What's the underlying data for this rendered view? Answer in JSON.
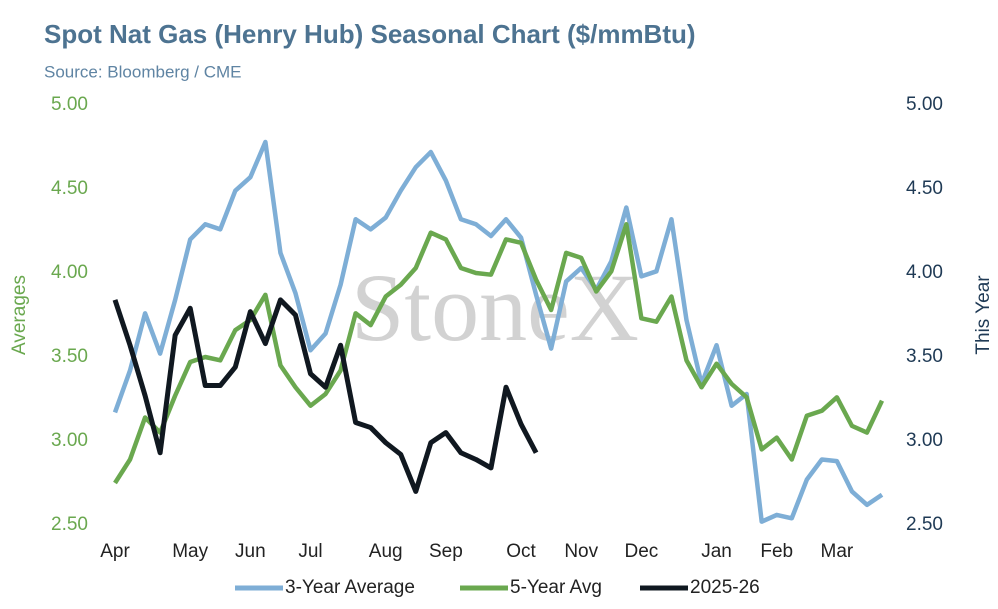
{
  "chart_data": {
    "type": "line",
    "title": "Spot Nat Gas (Henry Hub) Seasonal Chart ($/mmBtu)",
    "subtitle": "Source: Bloomberg / CME",
    "watermark": "StoneX",
    "y_label": "Averages",
    "y2_label": "This Year",
    "categories": [
      "Apr",
      null,
      null,
      null,
      null,
      "May",
      null,
      null,
      null,
      "Jun",
      null,
      null,
      null,
      "Jul",
      null,
      null,
      null,
      null,
      "Aug",
      null,
      null,
      null,
      "Sep",
      null,
      null,
      null,
      null,
      "Oct",
      null,
      null,
      null,
      "Nov",
      null,
      null,
      null,
      "Dec",
      null,
      null,
      null,
      null,
      "Jan",
      null,
      null,
      null,
      "Feb",
      null,
      null,
      null,
      "Mar",
      null,
      null,
      null
    ],
    "ylim": [
      2.5,
      5.0
    ],
    "yticks": [
      {
        "value": 2.5,
        "label": "2.50"
      },
      {
        "value": 3.0,
        "label": "3.00"
      },
      {
        "value": 3.5,
        "label": "3.50"
      },
      {
        "value": 4.0,
        "label": "4.00"
      },
      {
        "value": 4.5,
        "label": "4.50"
      },
      {
        "value": 5.0,
        "label": "5.00"
      }
    ],
    "y2lim": [
      2.5,
      5.0
    ],
    "y2ticks": [
      {
        "value": 2.5,
        "label": "2.50"
      },
      {
        "value": 3.0,
        "label": "3.00"
      },
      {
        "value": 3.5,
        "label": "3.50"
      },
      {
        "value": 4.0,
        "label": "4.00"
      },
      {
        "value": 4.5,
        "label": "4.50"
      },
      {
        "value": 5.0,
        "label": "5.00"
      }
    ],
    "legend": "bottom",
    "series": [
      {
        "name": "3-Year Average",
        "color": "#7eaed6",
        "values": [
          3.17,
          3.42,
          3.76,
          3.52,
          3.84,
          4.2,
          4.29,
          4.26,
          4.49,
          4.57,
          4.78,
          4.12,
          3.88,
          3.54,
          3.64,
          3.93,
          4.32,
          4.26,
          4.33,
          4.49,
          4.63,
          4.72,
          4.55,
          4.32,
          4.29,
          4.22,
          4.32,
          4.21,
          3.87,
          3.55,
          3.95,
          4.03,
          3.9,
          4.07,
          4.39,
          3.98,
          4.01,
          4.32,
          3.72,
          3.34,
          3.57,
          3.21,
          3.28,
          2.52,
          2.56,
          2.54,
          2.77,
          2.89,
          2.88,
          2.7,
          2.62,
          2.68
        ]
      },
      {
        "name": "5-Year Avg",
        "color": "#6aa84f",
        "values": [
          2.75,
          2.89,
          3.14,
          3.05,
          3.27,
          3.47,
          3.5,
          3.48,
          3.66,
          3.72,
          3.87,
          3.45,
          3.32,
          3.21,
          3.28,
          3.42,
          3.76,
          3.69,
          3.86,
          3.93,
          4.03,
          4.24,
          4.2,
          4.03,
          4.0,
          3.99,
          4.2,
          4.18,
          3.96,
          3.78,
          4.12,
          4.09,
          3.89,
          4.01,
          4.29,
          3.73,
          3.71,
          3.86,
          3.48,
          3.32,
          3.46,
          3.34,
          3.26,
          2.95,
          3.02,
          2.89,
          3.15,
          3.18,
          3.26,
          3.09,
          3.05,
          3.24
        ]
      },
      {
        "name": "2025-26",
        "color": "#101820",
        "axis": "y2",
        "values": [
          3.84,
          3.57,
          3.27,
          2.93,
          3.63,
          3.79,
          3.33,
          3.33,
          3.44,
          3.77,
          3.58,
          3.84,
          3.75,
          3.4,
          3.32,
          3.57,
          3.11,
          3.08,
          2.99,
          2.92,
          2.7,
          2.99,
          3.05,
          2.93,
          2.89,
          2.84,
          3.32,
          3.1,
          2.93,
          null,
          null,
          null,
          null,
          null,
          null,
          null,
          null,
          null,
          null,
          null,
          null,
          null,
          null,
          null,
          null,
          null,
          null,
          null,
          null,
          null,
          null,
          null
        ]
      }
    ]
  }
}
